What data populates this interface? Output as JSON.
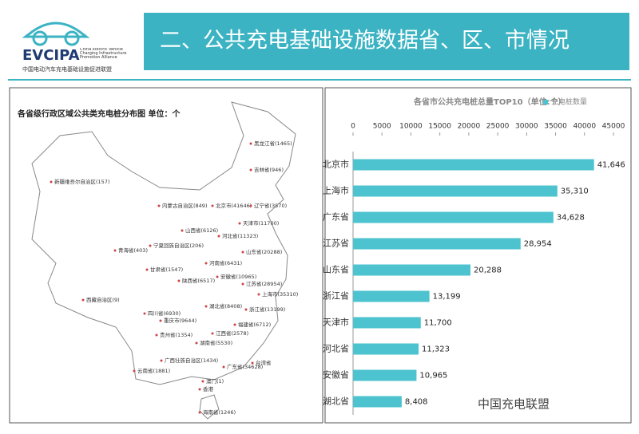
{
  "header": {
    "logo": "EVCIPA",
    "logo_en": "China Electric Vehicle Charging Infrastructure Promotion Alliance",
    "logo_cn": "中国电动汽车充电基础设施促进联盟",
    "title": "二、公共充电基础设施数据省、区、市情况"
  },
  "map": {
    "title": "各省级行政区域公共类充电桩分布图  单位：个",
    "labels": [
      "黑龙江省(1465)",
      "吉林省(946)",
      "新疆维吾尔自治区(157)",
      "内蒙古自治区(849)",
      "北京市(41646)",
      "辽宁省(3570)",
      "天津市(11700)",
      "山西省(6126)",
      "河北省(11323)",
      "青海省(403)",
      "宁夏回族自治区(206)",
      "山东省(20288)",
      "甘肃省(1547)",
      "河南省(6431)",
      "陕西省(6517)",
      "安徽省(10965)",
      "江苏省(28954)",
      "上海市(35310)",
      "西藏自治区(9)",
      "湖北省(8408)",
      "浙江省(13199)",
      "四川省(6930)",
      "重庆市(9644)",
      "福建省(6712)",
      "贵州省(1354)",
      "江西省(2578)",
      "湖南省(5530)",
      "广西壮族自治区(1434)",
      "广东省(34628)",
      "台湾省",
      "云南省(1881)",
      "澳门(1)",
      "香港",
      "海南省(1246)"
    ]
  },
  "chart_data": {
    "type": "hbar",
    "title": "各省市公共充电桩总量TOP10（单位:个）",
    "legend": "充电桩数量",
    "categories": [
      "北京市",
      "上海市",
      "广东省",
      "江苏省",
      "山东省",
      "浙江省",
      "天津市",
      "河北省",
      "安徽省",
      "湖北省"
    ],
    "values": [
      41646,
      35310,
      34628,
      28954,
      20288,
      13199,
      11700,
      11323,
      10965,
      8408
    ],
    "value_labels": [
      "41,646",
      "35,310",
      "34,628",
      "28,954",
      "20,288",
      "13,199",
      "11,700",
      "11,323",
      "10,965",
      "8,408"
    ],
    "color": "#4cc3cf",
    "xlim": [
      0,
      45000
    ],
    "xticks": [
      0,
      5000,
      10000,
      15000,
      20000,
      25000,
      30000,
      35000,
      40000,
      45000
    ]
  },
  "watermark": "中国充电联盟"
}
